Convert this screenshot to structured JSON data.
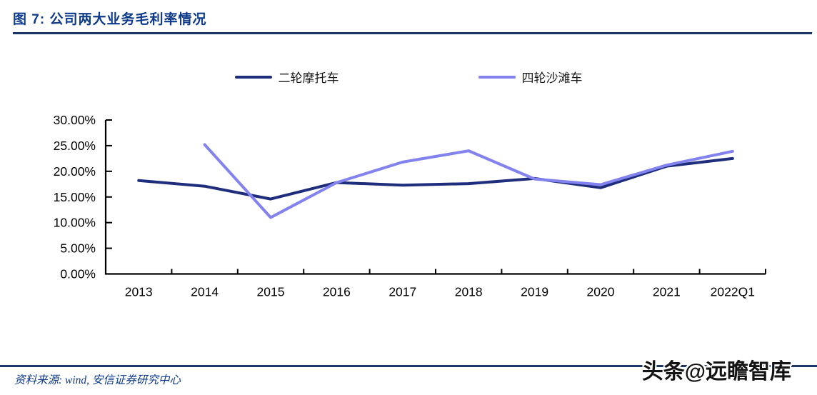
{
  "figure": {
    "title": "图 7:  公司两大业务毛利率情况",
    "source": "资料来源: wind, 安信证券研究中心",
    "watermark": "头条@远瞻智库"
  },
  "colors": {
    "title_blue": "#0d3a8a",
    "rule_navy": "#1b3766",
    "axis": "#000000",
    "series1": "#1f2d7d",
    "series2": "#8283ee"
  },
  "chart_data": {
    "type": "line",
    "categories": [
      "2013",
      "2014",
      "2015",
      "2016",
      "2017",
      "2018",
      "2019",
      "2020",
      "2021",
      "2022Q1"
    ],
    "series": [
      {
        "name": "二轮摩托车",
        "color": "#1f2d7d",
        "values": [
          18.2,
          17.1,
          14.6,
          17.8,
          17.3,
          17.6,
          18.6,
          16.8,
          21.0,
          22.5
        ]
      },
      {
        "name": "四轮沙滩车",
        "color": "#8283ee",
        "values": [
          null,
          25.2,
          11.0,
          17.8,
          21.8,
          24.0,
          18.5,
          17.4,
          21.2,
          23.9
        ]
      }
    ],
    "title": "公司两大业务毛利率情况",
    "xlabel": "",
    "ylabel": "",
    "ylim": [
      0,
      30
    ],
    "ytick_step": 5,
    "ytick_labels": [
      "0.00%",
      "5.00%",
      "10.00%",
      "15.00%",
      "20.00%",
      "25.00%",
      "30.00%"
    ],
    "grid": false,
    "legend_position": "top-center",
    "units": "percent"
  }
}
